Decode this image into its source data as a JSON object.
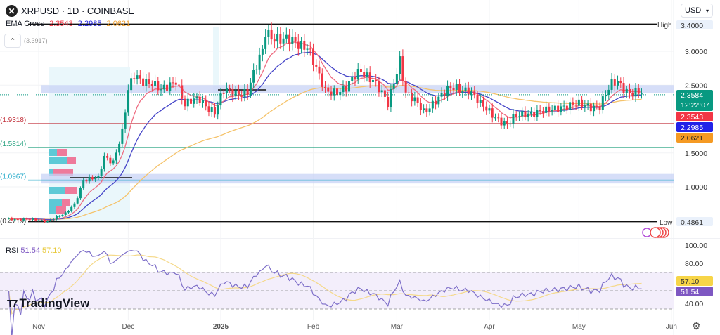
{
  "header": {
    "symbol_icon": "xrp-logo-icon",
    "title": "XRPUSD · 1D · COINBASE",
    "currency": "USD"
  },
  "indicator": {
    "name": "EMA Cross",
    "values": [
      "2.3543",
      "2.2985",
      "2.0621"
    ],
    "colors": [
      "#f23645",
      "#2a2ae0",
      "#f0a030"
    ]
  },
  "rsi": {
    "name": "RSI",
    "value": "51.54",
    "ma": "57.10",
    "value_color": "#7e57c2",
    "ma_color": "#f5d547"
  },
  "branding": "TradingView",
  "chart_data": {
    "type": "candlestick",
    "title": "XRPUSD · 1D · COINBASE",
    "ylim": [
      0.4,
      3.45
    ],
    "price_ticks": [
      "3.0000",
      "2.5000",
      "1.5000",
      "1.0000"
    ],
    "rsi_ticks": [
      "100.00",
      "80.00",
      "40.00"
    ],
    "rsi_band": [
      30,
      70
    ],
    "x_ticks": [
      "Nov",
      "Dec",
      "2025",
      "Feb",
      "Mar",
      "Apr",
      "May",
      "Jun"
    ],
    "high": {
      "label": "High",
      "value": "3.4000"
    },
    "low": {
      "label": "Low",
      "value": "0.4861"
    },
    "last_price": "2.3584",
    "countdown": "12:22:07",
    "up_color": "#089981",
    "down_color": "#f23645",
    "levels": [
      {
        "label": "(3.3917)",
        "price": 3.3917,
        "color": "#999999"
      },
      {
        "label": "(1.9318)",
        "price": 1.9318,
        "color": "#c2323c"
      },
      {
        "label": "(1.5814)",
        "price": 1.5814,
        "color": "#22a07d"
      },
      {
        "label": "(1.0967)",
        "price": 1.0967,
        "color": "#1fa8c9"
      },
      {
        "label": "(0.4719)",
        "price": 0.4719,
        "color": "#333333"
      }
    ],
    "zones": [
      {
        "from": 2.38,
        "to": 2.5
      },
      {
        "from": 1.05,
        "to": 1.19
      }
    ],
    "approx_closes": [
      [
        "2024-10-22",
        0.53
      ],
      [
        "2024-11-04",
        0.5
      ],
      [
        "2024-11-10",
        0.6
      ],
      [
        "2024-11-13",
        0.75
      ],
      [
        "2024-11-16",
        1.1
      ],
      [
        "2024-11-21",
        1.12
      ],
      [
        "2024-11-23",
        1.45
      ],
      [
        "2024-11-26",
        1.38
      ],
      [
        "2024-11-29",
        1.8
      ],
      [
        "2024-12-01",
        2.4
      ],
      [
        "2024-12-03",
        2.65
      ],
      [
        "2024-12-08",
        2.55
      ],
      [
        "2024-12-12",
        2.4
      ],
      [
        "2024-12-17",
        2.6
      ],
      [
        "2024-12-20",
        2.2
      ],
      [
        "2024-12-25",
        2.3
      ],
      [
        "2024-12-30",
        2.1
      ],
      [
        "2025-01-02",
        2.4
      ],
      [
        "2025-01-10",
        2.4
      ],
      [
        "2025-01-15",
        3.0
      ],
      [
        "2025-01-16",
        3.3
      ],
      [
        "2025-01-22",
        3.15
      ],
      [
        "2025-01-30",
        3.1
      ],
      [
        "2025-02-03",
        2.6
      ],
      [
        "2025-02-05",
        2.4
      ],
      [
        "2025-02-12",
        2.45
      ],
      [
        "2025-02-17",
        2.72
      ],
      [
        "2025-02-21",
        2.6
      ],
      [
        "2025-02-26",
        2.2
      ],
      [
        "2025-03-02",
        2.9
      ],
      [
        "2025-03-04",
        2.4
      ],
      [
        "2025-03-10",
        2.1
      ],
      [
        "2025-03-14",
        2.3
      ],
      [
        "2025-03-20",
        2.45
      ],
      [
        "2025-03-25",
        2.45
      ],
      [
        "2025-03-29",
        2.2
      ],
      [
        "2025-04-03",
        2.05
      ],
      [
        "2025-04-07",
        1.9
      ],
      [
        "2025-04-09",
        2.0
      ],
      [
        "2025-04-13",
        2.1
      ],
      [
        "2025-04-20",
        2.1
      ],
      [
        "2025-04-25",
        2.2
      ],
      [
        "2025-05-08",
        2.2
      ],
      [
        "2025-05-10",
        2.35
      ],
      [
        "2025-05-12",
        2.5
      ],
      [
        "2025-05-14",
        2.55
      ],
      [
        "2025-05-18",
        2.4
      ],
      [
        "2025-05-22",
        2.36
      ]
    ]
  }
}
